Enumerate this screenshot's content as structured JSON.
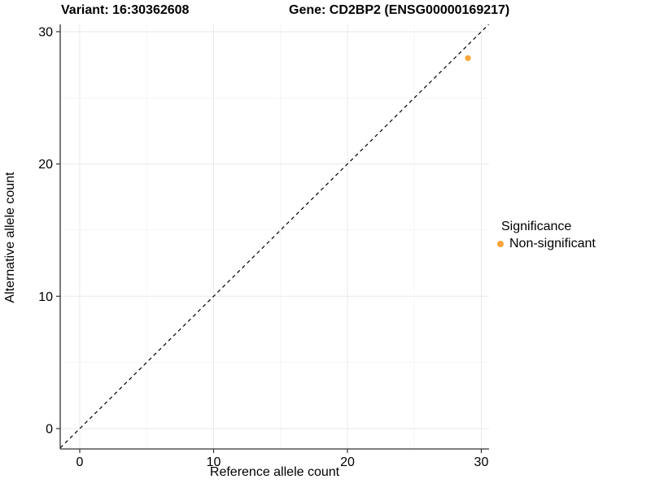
{
  "titles": {
    "variant": "Variant: 16:30362608",
    "gene": "Gene: CD2BP2 (ENSG00000169217)"
  },
  "chart_data": {
    "type": "scatter",
    "xlabel": "Reference allele count",
    "ylabel": "Alternative allele count",
    "xlim": [
      -1.46,
      30.58
    ],
    "ylim": [
      -1.54,
      30.55
    ],
    "x_ticks": [
      0,
      10,
      20,
      30
    ],
    "y_ticks": [
      0,
      10,
      20,
      30
    ],
    "x_minor_ticks": [
      5,
      15,
      25
    ],
    "y_minor_ticks": [
      5,
      15,
      25
    ],
    "grid": "major+minor",
    "series": [
      {
        "name": "Non-significant",
        "color": "#FAA43C",
        "points": [
          {
            "x": 29,
            "y": 28
          }
        ]
      }
    ],
    "reference_line": {
      "type": "identity",
      "style": "dashed",
      "color": "#000000"
    },
    "legend": {
      "position": "right",
      "title": "Significance",
      "items": [
        {
          "label": "Non-significant",
          "color": "#FAA43C"
        }
      ]
    }
  },
  "colors": {
    "background": "#ffffff",
    "axis_line": "#333333",
    "tick_mark": "#333333",
    "grid_major": "#e9e9e9",
    "grid_minor": "#f4f4f4",
    "point_orange": "#FAA43C"
  }
}
